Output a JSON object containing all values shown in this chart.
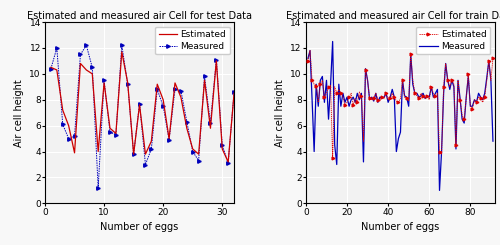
{
  "test_estimated": [
    10.5,
    10.3,
    7.2,
    6.0,
    3.9,
    10.8,
    10.3,
    10.0,
    4.0,
    9.3,
    5.8,
    5.4,
    11.7,
    9.3,
    3.8,
    7.6,
    3.8,
    4.8,
    9.2,
    8.0,
    5.0,
    9.3,
    8.2,
    5.8,
    4.2,
    3.8,
    9.5,
    5.8,
    11.0,
    4.2,
    3.2,
    8.5
  ],
  "test_measured": [
    10.4,
    12.0,
    6.1,
    5.0,
    5.2,
    11.5,
    12.2,
    10.5,
    1.2,
    9.5,
    5.5,
    5.3,
    12.2,
    9.2,
    3.8,
    7.7,
    3.0,
    4.2,
    8.8,
    7.5,
    4.9,
    8.8,
    8.7,
    6.3,
    4.0,
    3.3,
    9.8,
    6.2,
    11.1,
    4.5,
    3.1,
    8.6
  ],
  "train_estimated": [
    11.0,
    11.8,
    9.5,
    9.2,
    9.1,
    7.8,
    9.2,
    9.5,
    8.2,
    8.5,
    9.0,
    9.1,
    3.5,
    9.0,
    8.5,
    8.8,
    8.5,
    8.2,
    7.6,
    7.8,
    8.2,
    8.5,
    7.6,
    8.1,
    7.8,
    8.6,
    8.3,
    4.8,
    10.3,
    9.5,
    8.1,
    8.0,
    8.1,
    8.5,
    8.0,
    7.9,
    8.2,
    8.1,
    8.5,
    8.0,
    8.1,
    8.5,
    8.2,
    7.9,
    7.8,
    8.1,
    9.5,
    8.2,
    8.1,
    7.9,
    11.5,
    9.5,
    8.5,
    8.3,
    8.1,
    8.5,
    8.3,
    8.1,
    8.3,
    8.0,
    9.0,
    8.5,
    8.3,
    8.5,
    4.0,
    3.8,
    9.0,
    10.8,
    9.5,
    9.0,
    9.5,
    9.2,
    4.5,
    9.5,
    8.0,
    6.8,
    6.5,
    8.1,
    10.0,
    7.5,
    7.3,
    8.0,
    7.8,
    8.2,
    8.1,
    7.8,
    8.2,
    9.5,
    11.0,
    9.5,
    11.2
  ],
  "train_measured": [
    11.2,
    11.8,
    8.0,
    4.0,
    9.2,
    7.5,
    9.5,
    9.8,
    7.8,
    9.5,
    6.5,
    9.2,
    12.5,
    4.5,
    3.0,
    9.2,
    7.5,
    8.5,
    7.8,
    8.2,
    7.5,
    8.0,
    8.2,
    7.8,
    8.5,
    8.0,
    8.5,
    3.2,
    10.4,
    9.5,
    8.0,
    8.2,
    7.9,
    8.5,
    7.8,
    8.2,
    8.1,
    8.2,
    8.5,
    7.8,
    8.2,
    8.8,
    8.2,
    4.0,
    5.0,
    5.5,
    9.5,
    8.3,
    8.2,
    7.5,
    11.5,
    9.2,
    8.5,
    8.5,
    8.2,
    8.3,
    8.5,
    8.1,
    8.3,
    8.2,
    9.0,
    8.2,
    8.5,
    8.8,
    1.0,
    4.0,
    8.5,
    10.8,
    9.5,
    8.8,
    9.5,
    9.0,
    4.2,
    9.5,
    8.1,
    6.5,
    6.2,
    8.2,
    9.8,
    7.5,
    7.5,
    8.0,
    7.8,
    8.5,
    8.2,
    8.0,
    8.5,
    9.7,
    11.0,
    9.5,
    4.8
  ],
  "test_xlim": [
    0,
    32
  ],
  "test_ylim": [
    0,
    14
  ],
  "train_xlim": [
    0,
    92
  ],
  "train_ylim": [
    0,
    14
  ],
  "test_xticks": [
    0,
    10,
    20,
    30
  ],
  "train_xticks": [
    0,
    20,
    40,
    60,
    80
  ],
  "yticks": [
    0,
    2,
    4,
    6,
    8,
    10,
    12,
    14
  ],
  "test_title": "Estimated and measured air Cell for test Data",
  "train_title": "Estimated and measured air Cell for train Data",
  "xlabel": "Number of eggs",
  "ylabel": "Air cell height",
  "estimated_color_test": "#cc0000",
  "measured_color_test": "#0000bb",
  "estimated_color_train": "#dd0000",
  "measured_color_train": "#0000bb",
  "background_color": "#f2f2f2",
  "grid_color": "#ffffff",
  "title_fontsize": 7,
  "label_fontsize": 7,
  "tick_fontsize": 6.5,
  "legend_fontsize": 6.5
}
